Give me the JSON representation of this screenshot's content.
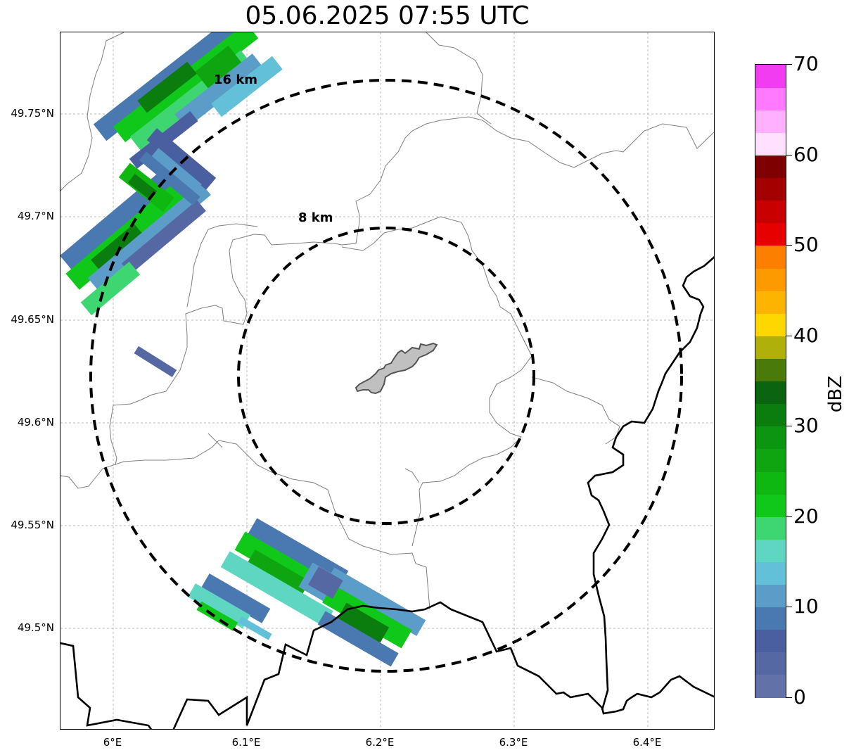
{
  "title": "05.06.2025 07:55 UTC",
  "map": {
    "lat_labels": [
      "49.75°N",
      "49.7°N",
      "49.65°N",
      "49.6°N",
      "49.55°N",
      "49.5°N"
    ],
    "lon_labels": [
      "6°E",
      "6.1°E",
      "6.2°E",
      "6.3°E",
      "6.4°E"
    ],
    "rings": [
      {
        "label": "8 km"
      },
      {
        "label": "16 km"
      }
    ],
    "colors": {
      "country_border": "#000000",
      "admin_border": "#808080",
      "city_fill": "#c0c0c0",
      "gridline": "#bbbbbb"
    }
  },
  "colorbar": {
    "label": "dBZ",
    "ticks": [
      "0",
      "10",
      "20",
      "30",
      "40",
      "50",
      "60",
      "70"
    ],
    "min": 0,
    "max": 70,
    "step": 2.5,
    "colors": [
      "#6272a8",
      "#5668a3",
      "#4a5fa0",
      "#4a78b0",
      "#5b9dc8",
      "#62c0d8",
      "#5ed6c2",
      "#3ed670",
      "#10c81a",
      "#0fb810",
      "#0ea510",
      "#0c9510",
      "#0a7d0e",
      "#0a6410",
      "#4a7a0a",
      "#b0b00a",
      "#fed700",
      "#fcb400",
      "#fc9a00",
      "#fc7f00",
      "#e60000",
      "#c80000",
      "#a50000",
      "#7f0000",
      "#ffe0ff",
      "#ffb0ff",
      "#ff7aff",
      "#f23cf2"
    ]
  }
}
